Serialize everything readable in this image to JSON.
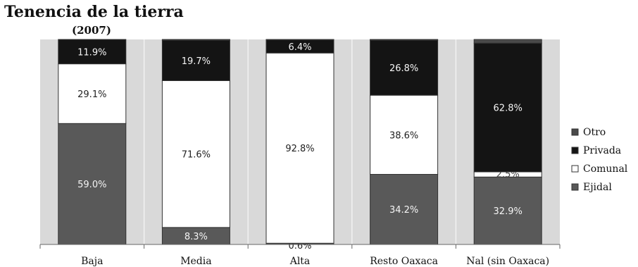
{
  "chart_data": {
    "type": "bar",
    "stacked": true,
    "title": "Tenencia de la tierra",
    "subtitle": "(2007)",
    "categories": [
      "Baja",
      "Media",
      "Alta",
      "Resto Oaxaca",
      "Nal (sin Oaxaca)"
    ],
    "series": [
      {
        "name": "Ejidal",
        "color": "#595959",
        "values": [
          59.0,
          8.3,
          0.6,
          34.2,
          32.9
        ],
        "labels": [
          "59.0%",
          "8.3%",
          "0.6%",
          "34.2%",
          "32.9%"
        ]
      },
      {
        "name": "Comunal",
        "color": "#ffffff",
        "values": [
          29.1,
          71.6,
          92.8,
          38.6,
          2.5
        ],
        "labels": [
          "29.1%",
          "71.6%",
          "92.8%",
          "38.6%",
          "2.5%"
        ]
      },
      {
        "name": "Privada",
        "color": "#141414",
        "values": [
          11.9,
          19.7,
          6.4,
          26.8,
          62.8
        ],
        "labels": [
          "11.9%",
          "19.7%",
          "6.4%",
          "26.8%",
          "62.8%"
        ]
      },
      {
        "name": "Otro",
        "color": "#4a4a4a",
        "values": [
          0.0,
          0.4,
          0.2,
          0.4,
          1.8
        ],
        "labels": [
          "",
          "",
          "",
          "",
          ""
        ]
      }
    ],
    "legend_order": [
      "Otro",
      "Privada",
      "Comunal",
      "Ejidal"
    ],
    "ylim": [
      0,
      100
    ],
    "plot_background": "#d9d9d9",
    "legend_position": "right"
  }
}
